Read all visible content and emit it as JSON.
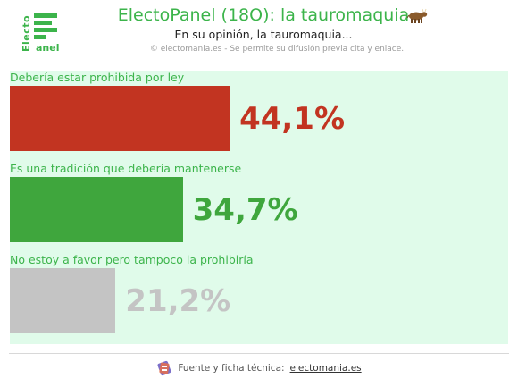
{
  "header": {
    "logo_text": "Electo",
    "logo_sub": "anel",
    "title": "ElectoPanel (18O): la tauromaquia",
    "title_icon": "cow-icon",
    "subtitle": "En su opinión, la tauromaquia...",
    "copyright": "© electomania.es - Se permite su difusión previa cita y enlace."
  },
  "chart_data": {
    "type": "bar",
    "orientation": "horizontal",
    "categories": [
      "Debería estar prohibida por ley",
      "Es una tradición que debería mantenerse",
      "No estoy a favor pero tampoco la prohibiría"
    ],
    "values": [
      44.1,
      34.7,
      21.2
    ],
    "value_labels": [
      "44,1%",
      "34,7%",
      "21,2%"
    ],
    "colors": [
      "#c23421",
      "#3fa63d",
      "#c4c4c4"
    ],
    "xlim": [
      0,
      100
    ],
    "grid": false,
    "legend": "none"
  },
  "footer": {
    "text": "Fuente y ficha técnica:",
    "link": "electomania.es",
    "icon": "electomania-logo-icon"
  },
  "colors": {
    "brand": "#3cb44b",
    "plot_background": "#e0fbea"
  }
}
